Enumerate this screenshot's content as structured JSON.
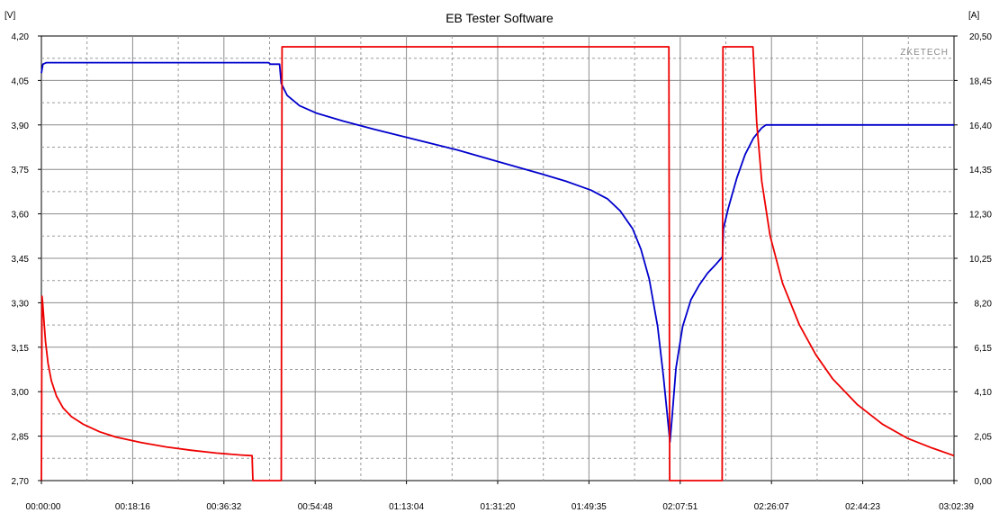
{
  "chart_data": {
    "type": "line",
    "title": "EB Tester Software",
    "brand": "ZKETECH",
    "left_axis": {
      "unit_label": "[V]",
      "range": [
        2.7,
        4.2
      ],
      "ticks": [
        "4,20",
        "4,05",
        "3,90",
        "3,75",
        "3,60",
        "3,45",
        "3,30",
        "3,15",
        "3,00",
        "2,85",
        "2,70"
      ]
    },
    "right_axis": {
      "unit_label": "[A]",
      "range": [
        0.0,
        20.5
      ],
      "ticks": [
        "20,50",
        "18,45",
        "16,40",
        "14,35",
        "12,30",
        "10,25",
        "8,20",
        "6,15",
        "4,10",
        "2,05",
        "0,00"
      ]
    },
    "x_axis": {
      "range_seconds": [
        0,
        10959
      ],
      "ticks": [
        "00:00:00",
        "00:18:16",
        "00:36:32",
        "00:54:48",
        "01:13:04",
        "01:31:20",
        "01:49:35",
        "02:07:51",
        "02:26:07",
        "02:44:23",
        "03:02:39"
      ]
    },
    "grid": true,
    "series": [
      {
        "axis": "left",
        "color": "#0000cc",
        "points": [
          [
            0,
            4.075
          ],
          [
            18,
            4.105
          ],
          [
            60,
            4.11
          ],
          [
            600,
            4.11
          ],
          [
            1500,
            4.11
          ],
          [
            2400,
            4.11
          ],
          [
            2730,
            4.11
          ],
          [
            2750,
            4.105
          ],
          [
            2860,
            4.105
          ],
          [
            2880,
            4.04
          ],
          [
            2950,
            4.0
          ],
          [
            3100,
            3.965
          ],
          [
            3300,
            3.94
          ],
          [
            3600,
            3.915
          ],
          [
            4000,
            3.885
          ],
          [
            4500,
            3.85
          ],
          [
            5000,
            3.815
          ],
          [
            5500,
            3.775
          ],
          [
            6000,
            3.735
          ],
          [
            6300,
            3.71
          ],
          [
            6600,
            3.68
          ],
          [
            6800,
            3.65
          ],
          [
            6950,
            3.61
          ],
          [
            7100,
            3.55
          ],
          [
            7200,
            3.48
          ],
          [
            7300,
            3.38
          ],
          [
            7400,
            3.22
          ],
          [
            7470,
            3.05
          ],
          [
            7520,
            2.91
          ],
          [
            7548,
            2.83
          ],
          [
            7570,
            2.9
          ],
          [
            7620,
            3.08
          ],
          [
            7700,
            3.22
          ],
          [
            7800,
            3.31
          ],
          [
            7900,
            3.36
          ],
          [
            8000,
            3.4
          ],
          [
            8100,
            3.43
          ],
          [
            8178,
            3.455
          ],
          [
            8190,
            3.55
          ],
          [
            8250,
            3.62
          ],
          [
            8350,
            3.72
          ],
          [
            8450,
            3.8
          ],
          [
            8550,
            3.855
          ],
          [
            8650,
            3.89
          ],
          [
            8700,
            3.9
          ],
          [
            8800,
            3.9
          ],
          [
            9500,
            3.9
          ],
          [
            10500,
            3.9
          ],
          [
            10959,
            3.9
          ]
        ]
      },
      {
        "axis": "right",
        "color": "#ee0000",
        "points": [
          [
            0,
            0.0
          ],
          [
            8,
            8.5
          ],
          [
            15,
            8.2
          ],
          [
            30,
            7.4
          ],
          [
            50,
            6.4
          ],
          [
            80,
            5.4
          ],
          [
            120,
            4.6
          ],
          [
            180,
            3.9
          ],
          [
            260,
            3.35
          ],
          [
            360,
            2.95
          ],
          [
            500,
            2.6
          ],
          [
            700,
            2.25
          ],
          [
            900,
            2.0
          ],
          [
            1200,
            1.75
          ],
          [
            1500,
            1.55
          ],
          [
            1800,
            1.4
          ],
          [
            2100,
            1.27
          ],
          [
            2400,
            1.18
          ],
          [
            2530,
            1.15
          ],
          [
            2540,
            0.0
          ],
          [
            2880,
            0.0
          ],
          [
            2890,
            20.0
          ],
          [
            7535,
            20.0
          ],
          [
            7545,
            0.0
          ],
          [
            8175,
            0.0
          ],
          [
            8185,
            20.0
          ],
          [
            8545,
            20.0
          ],
          [
            8590,
            16.5
          ],
          [
            8650,
            13.8
          ],
          [
            8750,
            11.3
          ],
          [
            8900,
            9.1
          ],
          [
            9100,
            7.2
          ],
          [
            9300,
            5.8
          ],
          [
            9500,
            4.7
          ],
          [
            9800,
            3.5
          ],
          [
            10100,
            2.6
          ],
          [
            10400,
            1.95
          ],
          [
            10700,
            1.5
          ],
          [
            10959,
            1.15
          ]
        ]
      }
    ]
  }
}
